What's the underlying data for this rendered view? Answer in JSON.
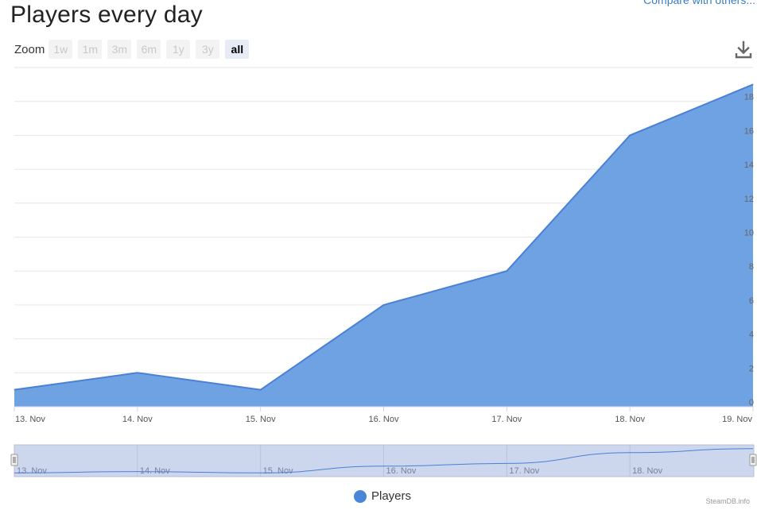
{
  "header": {
    "title": "Players every day",
    "compare_link": "Compare with others..."
  },
  "zoom": {
    "label": "Zoom",
    "options": [
      "1w",
      "1m",
      "3m",
      "6m",
      "1y",
      "3y",
      "all"
    ],
    "active": "all"
  },
  "legend": {
    "label": "Players",
    "color": "#4a86d8"
  },
  "credit": "SteamDB.info",
  "colors": {
    "area_fill": "#6fa2e2",
    "line": "#4a80d6",
    "navigator_bg": "#ccd6ec"
  },
  "chart_data": {
    "type": "area",
    "x": [
      "13. Nov",
      "14. Nov",
      "15. Nov",
      "16. Nov",
      "17. Nov",
      "18. Nov",
      "19. Nov"
    ],
    "series": [
      {
        "name": "Players",
        "values": [
          1,
          2,
          1,
          6,
          8,
          16,
          19
        ]
      }
    ],
    "ylim": [
      0,
      20
    ],
    "yticks": [
      0,
      2,
      4,
      6,
      8,
      10,
      12,
      14,
      16,
      18
    ],
    "ytick_labels": [
      "0",
      "2",
      "4",
      "6",
      "8",
      "10",
      "12",
      "14",
      "16",
      "18"
    ],
    "xtick_labels": [
      "13. Nov",
      "14. Nov",
      "15. Nov",
      "16. Nov",
      "17. Nov",
      "18. Nov",
      "19. Nov"
    ],
    "navigator_labels": [
      "13. Nov",
      "14. Nov",
      "15. Nov",
      "16. Nov",
      "17. Nov",
      "18. Nov"
    ],
    "grid": true,
    "legend_position": "bottom-center"
  }
}
